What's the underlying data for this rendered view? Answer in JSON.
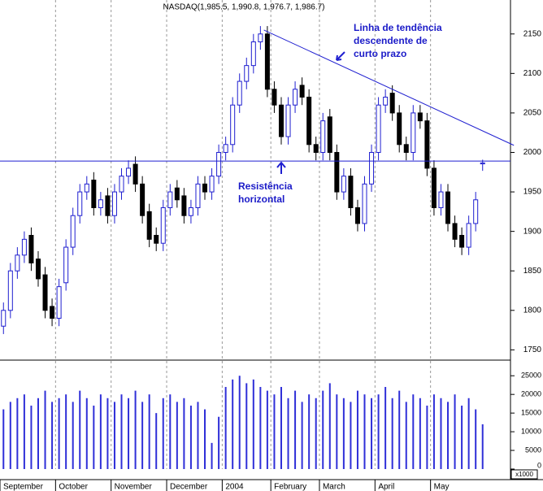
{
  "chart_data": {
    "type": "candlestick",
    "title": "NASDAQ(1,985.5, 1,990.8, 1,976.7, 1,986.7)",
    "categories": [
      "September",
      null,
      null,
      null,
      null,
      null,
      null,
      null,
      "October",
      null,
      null,
      null,
      null,
      null,
      null,
      null,
      "November",
      null,
      null,
      null,
      null,
      null,
      null,
      null,
      "December",
      null,
      null,
      null,
      null,
      null,
      null,
      null,
      "2004",
      null,
      null,
      null,
      null,
      null,
      null,
      "February",
      null,
      null,
      null,
      null,
      null,
      null,
      "March",
      null,
      null,
      null,
      null,
      null,
      null,
      null,
      "April",
      null,
      null,
      null,
      null,
      null,
      null,
      null,
      "May",
      null,
      null,
      null,
      null,
      null,
      null,
      null
    ],
    "open": [
      1780,
      1800,
      1850,
      1870,
      1895,
      1865,
      1845,
      1805,
      1790,
      1835,
      1880,
      1920,
      1950,
      1965,
      1930,
      1945,
      1920,
      1950,
      1970,
      1985,
      1960,
      1925,
      1895,
      1885,
      1930,
      1955,
      1945,
      1920,
      1930,
      1960,
      1950,
      1970,
      2000,
      2010,
      2060,
      2090,
      2110,
      2140,
      2150,
      2080,
      2060,
      2020,
      2060,
      2085,
      2070,
      2010,
      2000,
      2045,
      2000,
      1950,
      1970,
      1930,
      1910,
      1960,
      2000,
      2060,
      2075,
      2050,
      2010,
      2000,
      2050,
      2040,
      1980,
      1930,
      1950,
      1910,
      1895,
      1880,
      1910,
      1985.5
    ],
    "high": [
      1810,
      1860,
      1880,
      1900,
      1905,
      1875,
      1855,
      1815,
      1840,
      1890,
      1930,
      1960,
      1970,
      1975,
      1950,
      1955,
      1960,
      1980,
      1990,
      1995,
      1970,
      1935,
      1905,
      1940,
      1960,
      1965,
      1955,
      1940,
      1970,
      1970,
      1980,
      2010,
      2020,
      2070,
      2100,
      2120,
      2150,
      2160,
      2160,
      2090,
      2070,
      2070,
      2090,
      2095,
      2080,
      2020,
      2050,
      2055,
      2010,
      1980,
      1980,
      1940,
      1970,
      2010,
      2070,
      2080,
      2085,
      2060,
      2020,
      2060,
      2060,
      2050,
      1990,
      1960,
      1960,
      1920,
      1905,
      1920,
      1950,
      1990.8
    ],
    "low": [
      1770,
      1790,
      1840,
      1860,
      1850,
      1830,
      1790,
      1780,
      1780,
      1825,
      1870,
      1910,
      1940,
      1920,
      1920,
      1910,
      1910,
      1940,
      1960,
      1950,
      1910,
      1880,
      1875,
      1875,
      1920,
      1930,
      1910,
      1910,
      1920,
      1940,
      1940,
      1960,
      1990,
      2000,
      2050,
      2080,
      2100,
      2130,
      2070,
      2050,
      2010,
      2010,
      2050,
      2060,
      2000,
      1990,
      1990,
      1990,
      1940,
      1940,
      1920,
      1900,
      1900,
      1950,
      1990,
      2050,
      2040,
      2000,
      1990,
      1990,
      2030,
      1970,
      1920,
      1920,
      1900,
      1880,
      1870,
      1870,
      1900,
      1976.7
    ],
    "close": [
      1800,
      1850,
      1870,
      1890,
      1860,
      1840,
      1800,
      1790,
      1830,
      1880,
      1920,
      1950,
      1960,
      1930,
      1940,
      1920,
      1950,
      1970,
      1980,
      1960,
      1920,
      1890,
      1885,
      1930,
      1950,
      1940,
      1920,
      1930,
      1960,
      1950,
      1970,
      2000,
      2010,
      2060,
      2090,
      2110,
      2140,
      2150,
      2080,
      2060,
      2020,
      2060,
      2080,
      2070,
      2010,
      2000,
      2040,
      2000,
      1950,
      1970,
      1930,
      1910,
      1960,
      2000,
      2060,
      2070,
      2050,
      2010,
      2000,
      2050,
      2040,
      1980,
      1930,
      1950,
      1910,
      1890,
      1880,
      1910,
      1940,
      1986.7
    ],
    "volume": [
      16000,
      18000,
      19000,
      20000,
      17000,
      19000,
      21000,
      18000,
      19000,
      20000,
      18000,
      21000,
      19000,
      17000,
      20000,
      19000,
      18000,
      20000,
      19000,
      21000,
      18000,
      20000,
      15000,
      19000,
      20000,
      18000,
      19000,
      17000,
      18000,
      16000,
      7000,
      14000,
      22000,
      24000,
      25000,
      23000,
      24000,
      22000,
      21000,
      20000,
      22000,
      19000,
      21000,
      18000,
      20000,
      19000,
      21000,
      23000,
      20000,
      19000,
      18000,
      21000,
      20000,
      19000,
      20000,
      22000,
      19000,
      21000,
      18000,
      20000,
      19000,
      17000,
      20000,
      19000,
      18000,
      20000,
      17000,
      19000,
      16000,
      12000
    ],
    "up_color": "#1f1fd0",
    "down_color": "#000000",
    "volume_color": "#2f2fd8",
    "ylim": [
      1737,
      2193
    ],
    "yticks": [
      1750,
      1800,
      1850,
      1900,
      1950,
      2000,
      2050,
      2100,
      2150
    ],
    "y2lim": [
      0,
      28100
    ],
    "y2ticks": [
      0,
      5000,
      10000,
      15000,
      20000,
      25000
    ],
    "y2_unit": "x1000",
    "month_grid": true,
    "trend_line": {
      "from": [
        37.5,
        2155
      ],
      "to": [
        73.5,
        2009
      ],
      "color": "#1f1fd0"
    },
    "resistance": {
      "value": 1989,
      "color": "#1f1fd0"
    },
    "annotations": [
      {
        "lines": [
          "Linha de tendência",
          "descendente de",
          "curto prazo"
        ]
      },
      {
        "lines": [
          "Resistência",
          "horizontal"
        ]
      }
    ]
  }
}
